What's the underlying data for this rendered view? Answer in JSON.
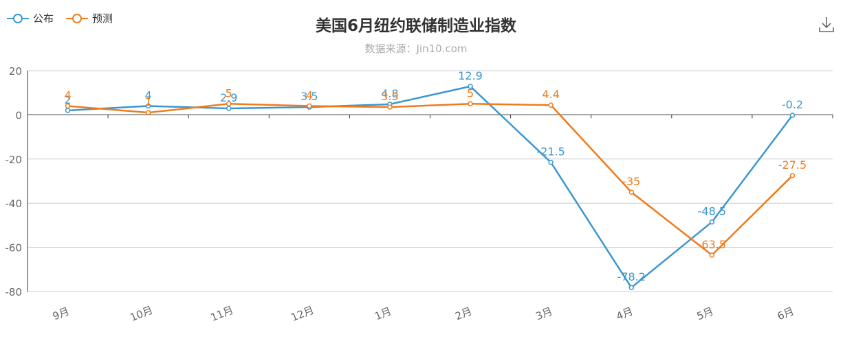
{
  "legend": [
    {
      "name": "公布",
      "color": "#3a97d0"
    },
    {
      "name": "预测",
      "color": "#f07b1b"
    }
  ],
  "download_icon": "download-icon",
  "chart_data": {
    "type": "line",
    "title": "美国6月纽约联储制造业指数",
    "subtitle": "数据来源：Jin10.com",
    "categories": [
      "9月",
      "10月",
      "11月",
      "12月",
      "1月",
      "2月",
      "3月",
      "4月",
      "5月",
      "6月"
    ],
    "ylim": [
      -80,
      20
    ],
    "yticks": [
      20,
      0,
      -20,
      -40,
      -60,
      -80
    ],
    "grid": true,
    "legend_position": "top-left",
    "series": [
      {
        "name": "公布",
        "color": "#3a97d0",
        "values": [
          2,
          4,
          2.9,
          3.5,
          4.8,
          12.9,
          -21.5,
          -78.2,
          -48.5,
          -0.2
        ],
        "labels": [
          "2",
          "4",
          "2.9",
          "3.5",
          "4.8",
          "12.9",
          "-21.5",
          "-78.2",
          "-48.5",
          "-0.2"
        ]
      },
      {
        "name": "预测",
        "color": "#f07b1b",
        "values": [
          4,
          1,
          5,
          4,
          3.5,
          5,
          4.4,
          -35,
          -63.5,
          -27.5
        ],
        "labels": [
          "4",
          "1",
          "5",
          "4",
          "3.5",
          "5",
          "4.4",
          "-35",
          "-63.5",
          "-27.5"
        ]
      }
    ]
  }
}
